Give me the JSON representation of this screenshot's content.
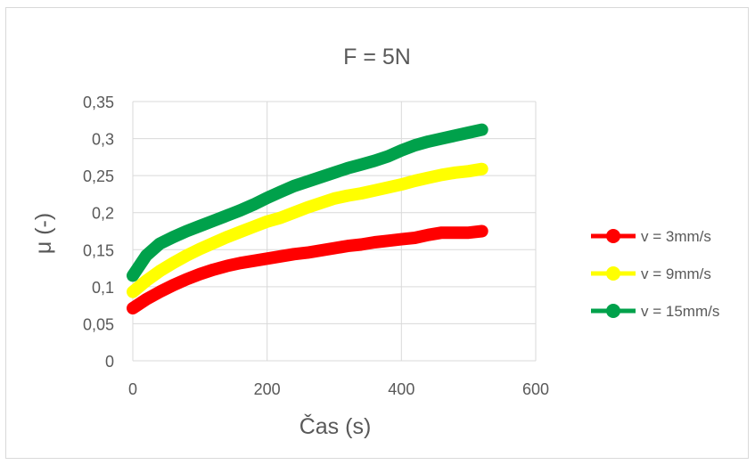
{
  "chart_data": {
    "type": "line",
    "title": "F = 5N",
    "xlabel": "Čas (s)",
    "ylabel": "μ (-)",
    "xlim": [
      0,
      600
    ],
    "ylim": [
      0,
      0.35
    ],
    "x_ticks": [
      0,
      200,
      400,
      600
    ],
    "x_tick_labels": [
      "0",
      "200",
      "400",
      "600"
    ],
    "y_ticks": [
      0,
      0.05,
      0.1,
      0.15,
      0.2,
      0.25,
      0.3,
      0.35
    ],
    "y_tick_labels": [
      "0",
      "0,05",
      "0,1",
      "0,15",
      "0,2",
      "0,25",
      "0,3",
      "0,35"
    ],
    "grid": true,
    "legend_position": "right",
    "series": [
      {
        "name": "v = 3mm/s",
        "color": "#ff0000",
        "x": [
          0,
          20,
          40,
          60,
          80,
          100,
          120,
          140,
          160,
          180,
          200,
          220,
          240,
          260,
          280,
          300,
          320,
          340,
          360,
          380,
          400,
          420,
          440,
          460,
          480,
          500,
          520
        ],
        "y": [
          0.071,
          0.083,
          0.093,
          0.102,
          0.11,
          0.117,
          0.123,
          0.128,
          0.132,
          0.135,
          0.138,
          0.141,
          0.144,
          0.146,
          0.149,
          0.152,
          0.155,
          0.157,
          0.16,
          0.162,
          0.164,
          0.166,
          0.17,
          0.173,
          0.173,
          0.173,
          0.175
        ]
      },
      {
        "name": "v = 9mm/s",
        "color": "#ffff00",
        "x": [
          0,
          20,
          40,
          60,
          80,
          100,
          120,
          140,
          160,
          180,
          200,
          220,
          240,
          260,
          280,
          300,
          320,
          340,
          360,
          380,
          400,
          420,
          440,
          460,
          480,
          500,
          520
        ],
        "y": [
          0.093,
          0.108,
          0.121,
          0.132,
          0.142,
          0.151,
          0.159,
          0.167,
          0.174,
          0.181,
          0.188,
          0.193,
          0.2,
          0.207,
          0.213,
          0.219,
          0.223,
          0.226,
          0.23,
          0.234,
          0.238,
          0.243,
          0.247,
          0.251,
          0.254,
          0.256,
          0.259
        ]
      },
      {
        "name": "v = 15mm/s",
        "color": "#00a14b",
        "x": [
          0,
          20,
          40,
          60,
          80,
          100,
          120,
          140,
          160,
          180,
          200,
          220,
          240,
          260,
          280,
          300,
          320,
          340,
          360,
          380,
          400,
          420,
          440,
          460,
          480,
          500,
          520
        ],
        "y": [
          0.115,
          0.142,
          0.158,
          0.167,
          0.175,
          0.182,
          0.189,
          0.196,
          0.203,
          0.211,
          0.22,
          0.228,
          0.236,
          0.242,
          0.248,
          0.254,
          0.26,
          0.265,
          0.27,
          0.276,
          0.284,
          0.291,
          0.296,
          0.3,
          0.304,
          0.308,
          0.312
        ]
      }
    ]
  }
}
